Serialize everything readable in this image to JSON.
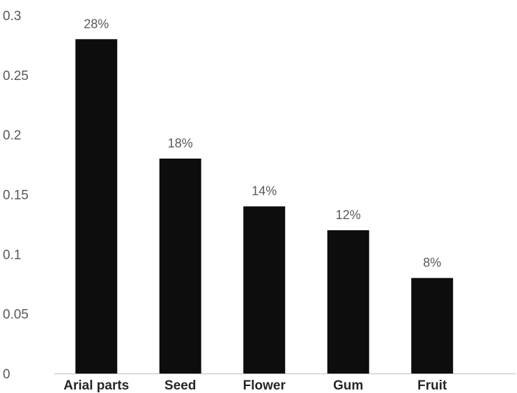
{
  "chart_data": {
    "type": "bar",
    "categories": [
      "Arial parts",
      "Seed",
      "Flower",
      "Gum",
      "Fruit"
    ],
    "values": [
      0.28,
      0.18,
      0.14,
      0.12,
      0.08
    ],
    "data_labels": [
      "28%",
      "18%",
      "14%",
      "12%",
      "8%"
    ],
    "y_ticks": [
      "0",
      "0.05",
      "0.1",
      "0.15",
      "0.2",
      "0.25",
      "0.3"
    ],
    "title": "",
    "xlabel": "",
    "ylabel": "",
    "ylim": [
      0,
      0.3
    ],
    "grid": false,
    "legend": "none",
    "bar_color": "#0d0d0d",
    "axis_color": "#bfbfbf"
  }
}
